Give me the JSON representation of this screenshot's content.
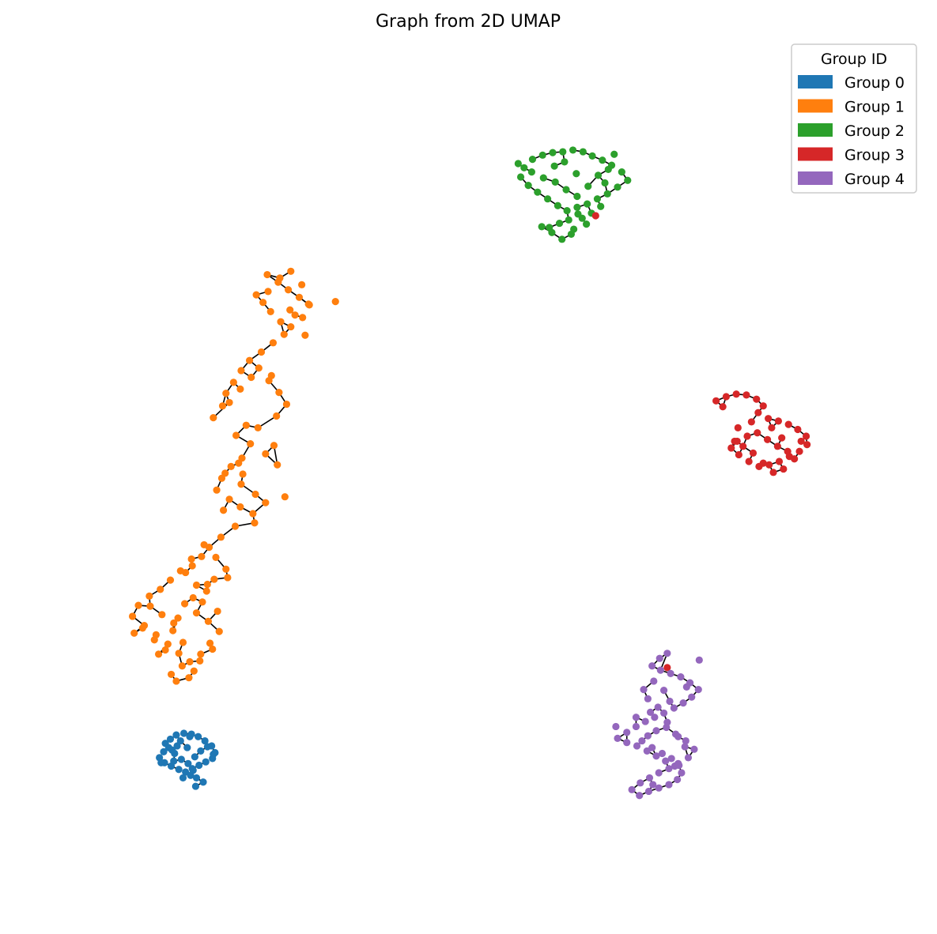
{
  "chart_data": {
    "type": "scatter",
    "title": "Graph from 2D UMAP",
    "xlabel": "",
    "ylabel": "",
    "axes_visible": false,
    "grid": false,
    "xlim": [
      0,
      100
    ],
    "ylim": [
      0,
      100
    ],
    "legend": {
      "title": "Group ID",
      "placement": "top-right",
      "entries": [
        {
          "label": "Group 0",
          "color": "#1f77b4"
        },
        {
          "label": "Group 1",
          "color": "#ff7f0e"
        },
        {
          "label": "Group 2",
          "color": "#2ca02c"
        },
        {
          "label": "Group 3",
          "color": "#d62728"
        },
        {
          "label": "Group 4",
          "color": "#9467bd"
        }
      ]
    },
    "edge_color": "#000000",
    "series": [
      {
        "name": "Group 0",
        "color": "#1f77b4",
        "x": [
          14.0,
          14.6,
          15.3,
          16.2,
          17.1,
          17.9,
          18.7,
          19.5,
          19.9,
          19.6,
          18.8,
          18.0,
          17.2,
          16.4,
          15.6,
          14.7,
          13.9,
          13.3,
          13.8,
          14.4,
          15.1,
          15.9,
          16.7,
          17.5,
          18.2,
          19.0,
          19.7,
          17.0,
          16.1,
          15.4,
          14.8,
          17.7,
          18.5,
          16.6,
          15.8,
          17.3,
          17.6,
          15.0,
          13.5,
          16.9
        ],
        "y": [
          17.3,
          17.8,
          18.3,
          18.5,
          18.4,
          18.1,
          17.6,
          17.0,
          16.2,
          15.5,
          15.1,
          14.7,
          14.3,
          13.9,
          14.2,
          14.6,
          15.0,
          15.6,
          16.3,
          16.8,
          16.1,
          15.4,
          14.9,
          15.7,
          16.4,
          16.9,
          16.0,
          13.5,
          13.2,
          17.0,
          16.5,
          13.2,
          12.7,
          16.8,
          17.6,
          14.1,
          12.2,
          15.2,
          15.0,
          18.1
        ]
      },
      {
        "name": "Group 1",
        "color": "#ff7f0e",
        "x": [
          26.1,
          27.4,
          28.6,
          29.9,
          31.1,
          30.3,
          28.9,
          27.7,
          26.5,
          25.6,
          24.8,
          26.2,
          27.6,
          28.9,
          30.2,
          31.0,
          29.4,
          28.1,
          26.8,
          25.4,
          24.0,
          23.0,
          22.1,
          21.2,
          20.8,
          19.7,
          21.6,
          22.9,
          24.2,
          25.1,
          26.3,
          27.5,
          28.4,
          27.2,
          23.6,
          22.4,
          24.1,
          25.9,
          22.7,
          21.1,
          23.0,
          24.7,
          25.9,
          24.4,
          22.9,
          21.6,
          20.1,
          20.7,
          21.8,
          23.1,
          22.3,
          20.6,
          19.2,
          18.3,
          17.2,
          16.4,
          17.7,
          18.9,
          19.8,
          21.2,
          20.0,
          18.6,
          17.1,
          15.8,
          14.6,
          13.4,
          12.1,
          10.8,
          10.1,
          11.5,
          12.9,
          14.3,
          15.6,
          16.9,
          18.2,
          19.3,
          20.4,
          19.1,
          17.7,
          16.3,
          15.0,
          13.6,
          12.2,
          14.9,
          16.1,
          17.4,
          16.0,
          14.7,
          15.3,
          16.8,
          18.1,
          19.6,
          18.4,
          14.0,
          12.7,
          11.3,
          10.3,
          13.2,
          15.5,
          17.3,
          19.0,
          21.4,
          26.6,
          28.8,
          30.6,
          34.2,
          20.2,
          20.9,
          24.6,
          26.9,
          25.0,
          27.3,
          23.2,
          28.2
        ],
        "y": [
          73.0,
          72.1,
          71.2,
          70.3,
          69.4,
          67.9,
          66.8,
          67.4,
          68.6,
          69.7,
          70.6,
          71.0,
          72.6,
          73.4,
          71.8,
          69.5,
          68.2,
          65.9,
          64.9,
          63.8,
          62.8,
          61.6,
          60.2,
          58.9,
          57.4,
          56.0,
          57.8,
          59.4,
          60.8,
          61.9,
          60.4,
          59.0,
          57.6,
          56.2,
          55.1,
          53.9,
          52.9,
          51.7,
          50.6,
          49.4,
          48.1,
          46.9,
          45.9,
          44.6,
          45.4,
          46.3,
          47.4,
          48.8,
          50.2,
          51.2,
          43.1,
          41.8,
          40.6,
          39.5,
          38.4,
          37.6,
          36.1,
          35.4,
          36.8,
          38.0,
          39.4,
          40.9,
          39.2,
          37.8,
          36.7,
          35.6,
          34.8,
          33.7,
          32.4,
          31.3,
          30.2,
          29.1,
          28.0,
          27.0,
          27.9,
          29.2,
          30.6,
          31.8,
          32.8,
          33.9,
          31.6,
          32.6,
          33.6,
          30.7,
          29.3,
          25.9,
          26.5,
          25.5,
          24.7,
          25.1,
          27.1,
          28.5,
          34.1,
          28.4,
          29.6,
          31.0,
          30.4,
          27.9,
          32.2,
          34.6,
          36.2,
          37.0,
          61.0,
          68.8,
          65.8,
          69.8,
          33.0,
          45.0,
          43.5,
          52.7,
          54.8,
          50.4,
          49.3,
          46.6
        ]
      },
      {
        "name": "Group 2",
        "color": "#2ca02c",
        "x": [
          56.6,
          57.6,
          58.8,
          60.0,
          61.2,
          62.4,
          63.6,
          64.7,
          65.9,
          67.0,
          68.2,
          68.9,
          67.7,
          66.5,
          65.3,
          64.1,
          62.9,
          61.7,
          60.6,
          59.4,
          58.2,
          57.1,
          56.2,
          57.5,
          58.9,
          60.3,
          61.6,
          62.9,
          64.2,
          65.4,
          66.6,
          63.0,
          61.9,
          60.8,
          59.6,
          62.5,
          63.5,
          64.6,
          65.7,
          62.2,
          61.1,
          59.9,
          58.7,
          60.2,
          61.4,
          64.0,
          66.2,
          67.3,
          55.9,
          62.8
        ],
        "y": [
          85.7,
          86.7,
          87.2,
          87.5,
          87.6,
          87.8,
          87.6,
          87.1,
          86.6,
          86.0,
          85.2,
          84.2,
          83.4,
          82.6,
          82.0,
          81.4,
          81.0,
          80.6,
          81.2,
          82.0,
          82.8,
          83.6,
          84.6,
          85.2,
          84.5,
          84.0,
          83.1,
          82.3,
          83.5,
          84.8,
          85.5,
          80.2,
          79.5,
          79.1,
          78.6,
          78.4,
          79.7,
          80.3,
          81.1,
          77.8,
          77.2,
          78.0,
          78.7,
          85.9,
          86.4,
          79.0,
          83.9,
          87.3,
          86.2,
          85.0
        ]
      },
      {
        "name": "Group 3",
        "color": "#d62728",
        "x": [
          79.4,
          80.6,
          81.8,
          83.0,
          84.2,
          85.0,
          84.4,
          85.6,
          86.8,
          88.0,
          89.1,
          90.1,
          90.2,
          89.3,
          88.1,
          86.9,
          85.7,
          84.5,
          83.3,
          82.1,
          81.2,
          81.9,
          83.1,
          84.3,
          85.5,
          86.7,
          87.9,
          88.7,
          87.4,
          86.2,
          85.0,
          83.8,
          82.6,
          81.6,
          82.0,
          83.6,
          86.0,
          87.2,
          89.5,
          80.2,
          65.1,
          73.6
        ],
        "y": [
          58.0,
          58.5,
          58.8,
          58.7,
          58.2,
          57.4,
          56.6,
          55.9,
          55.6,
          55.2,
          54.6,
          53.8,
          52.8,
          52.0,
          51.4,
          50.8,
          50.4,
          50.2,
          50.8,
          51.6,
          52.4,
          53.2,
          53.8,
          54.2,
          53.4,
          52.6,
          52.0,
          51.1,
          49.9,
          49.5,
          50.6,
          51.8,
          52.6,
          53.2,
          54.8,
          55.5,
          54.8,
          53.6,
          53.2,
          57.3,
          80.0,
          26.3
        ]
      },
      {
        "name": "Group 4",
        "color": "#9467bd",
        "x": [
          73.6,
          72.7,
          71.8,
          72.8,
          74.0,
          75.2,
          76.3,
          77.3,
          76.5,
          75.5,
          74.4,
          73.2,
          72.1,
          71.0,
          69.9,
          68.8,
          67.7,
          68.8,
          70.0,
          71.2,
          72.3,
          73.4,
          74.5,
          75.3,
          74.8,
          73.8,
          72.6,
          71.4,
          70.3,
          69.4,
          70.4,
          71.5,
          72.6,
          73.8,
          74.9,
          76.1,
          76.8,
          75.8,
          74.6,
          73.5,
          72.3,
          71.3,
          70.6,
          71.8,
          73.0,
          74.1,
          75.0,
          75.7,
          74.9,
          73.6,
          72.5,
          71.3,
          70.8,
          72.0,
          73.2,
          73.9,
          71.6,
          69.9,
          67.5,
          77.4,
          75.9,
          71.9
        ],
        "y": [
          28.0,
          27.4,
          26.5,
          26.0,
          25.6,
          25.2,
          24.5,
          23.7,
          22.8,
          22.1,
          21.5,
          20.9,
          20.4,
          19.9,
          19.3,
          18.6,
          17.9,
          17.4,
          17.0,
          16.4,
          15.8,
          15.2,
          14.6,
          13.8,
          13.0,
          12.4,
          12.0,
          11.6,
          11.1,
          11.8,
          12.6,
          13.2,
          13.8,
          14.3,
          14.9,
          15.6,
          16.6,
          17.6,
          18.4,
          19.2,
          18.8,
          18.2,
          17.6,
          16.8,
          16.1,
          15.5,
          14.7,
          16.9,
          18.1,
          19.8,
          21.6,
          22.6,
          23.7,
          24.7,
          23.6,
          22.3,
          21.0,
          20.4,
          19.3,
          27.2,
          24.0,
          12.4
        ]
      }
    ]
  }
}
